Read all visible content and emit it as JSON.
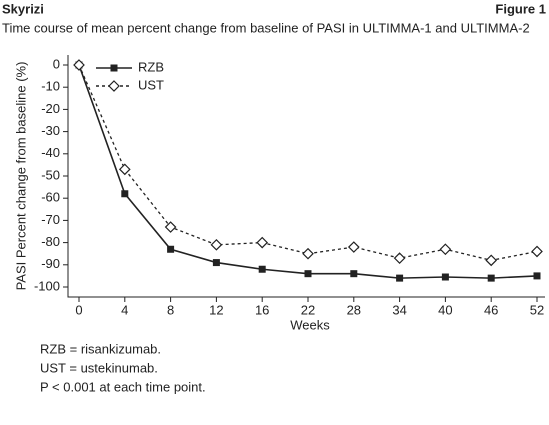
{
  "header": {
    "brand": "Skyrizi",
    "figure": "Figure 1"
  },
  "chart_data": {
    "type": "line",
    "title": "Time course of mean percent change from baseline of PASI in ULTIMMA-1 and ULTIMMA-2",
    "x_label": "Weeks",
    "y_label": "PASI Percent change from baseline (%)",
    "categories": [
      "0",
      "4",
      "8",
      "12",
      "16",
      "22",
      "28",
      "34",
      "40",
      "46",
      "52"
    ],
    "ylim": [
      -100,
      0
    ],
    "yticks": [
      0,
      -10,
      -20,
      -30,
      -40,
      -50,
      -60,
      -70,
      -80,
      -90,
      -100
    ],
    "grid": false,
    "legend": "top-left",
    "series": [
      {
        "name": "RZB",
        "color": "#222222",
        "marker": "square",
        "dash": false,
        "values": [
          0,
          -58,
          -83,
          -89,
          -92,
          -94,
          -94,
          -96,
          -95.5,
          -96,
          -95
        ]
      },
      {
        "name": "UST",
        "color": "#222222",
        "marker": "diamond",
        "dash": true,
        "values": [
          0,
          -47,
          -73,
          -81,
          -80,
          -85,
          -82,
          -87,
          -83,
          -88,
          -84
        ]
      }
    ]
  },
  "footnotes": [
    "RZB = risankizumab.",
    "UST = ustekinumab.",
    "P < 0.001 at each time point."
  ]
}
